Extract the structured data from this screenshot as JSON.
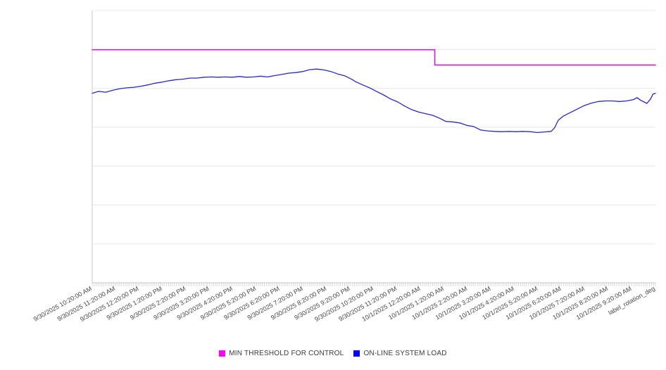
{
  "page": {
    "background_color": "#ffffff",
    "gridline_color": "#e8e8e8",
    "axis_color": "#c8c8c8",
    "tick_color": "#c4c4c4",
    "axis_label_color": "#474747"
  },
  "chart_data": {
    "type": "line",
    "title": "",
    "xlabel": "",
    "ylabel": "",
    "legend_position": "bottom",
    "grid": "horizontal",
    "x_axis": {
      "tick_labels": [
        "9/30/2025 10:20:00 AM",
        "9/30/2025 11:20:00 AM",
        "9/30/2025 12:20:00 PM",
        "9/30/2025 1:20:00 PM",
        "9/30/2025 2:20:00 PM",
        "9/30/2025 3:20:00 PM",
        "9/30/2025 4:20:00 PM",
        "9/30/2025 5:20:00 PM",
        "9/30/2025 6:20:00 PM",
        "9/30/2025 7:20:00 PM",
        "9/30/2025 8:20:00 PM",
        "9/30/2025 9:20:00 PM",
        "9/30/2025 10:20:00 PM",
        "9/30/2025 11:20:00 PM",
        "10/1/2025 12:20:00 AM",
        "10/1/2025 1:20:00 AM",
        "10/1/2025 2:20:00 AM",
        "10/1/2025 3:20:00 AM",
        "10/1/2025 4:20:00 AM",
        "10/1/2025 5:20:00 AM",
        "10/1/2025 6:20:00 AM",
        "10/1/2025 7:20:00 AM",
        "10/1/2025 8:20:00 AM",
        "10/1/2025 9:20:00 AM",
        "label_rotation_deg",
        -29
      ],
      "range_hours": [
        0,
        23
      ],
      "minor_ticks_per_hour": 12
    },
    "y_axis": {
      "tick_labels_visible": false,
      "divisions": 7,
      "value_range_pct": [
        0,
        100
      ]
    },
    "series": [
      {
        "name": "MIN THRESHOLD FOR CONTROL",
        "line_color": "#ce1fce",
        "legend_color": "#ff00ff",
        "line_width": 1.6,
        "points": [
          [
            0,
            85.6
          ],
          [
            13.99,
            85.6
          ],
          [
            13.99,
            80.0
          ],
          [
            23,
            80.0
          ]
        ]
      },
      {
        "name": "ON-LINE SYSTEM LOAD",
        "line_color": "#2828c8",
        "legend_color": "#0000ff",
        "line_width": 1.3,
        "points": [
          [
            0,
            69.6
          ],
          [
            0.26,
            70.3
          ],
          [
            0.55,
            70.0
          ],
          [
            0.83,
            70.7
          ],
          [
            1.12,
            71.3
          ],
          [
            1.41,
            71.6
          ],
          [
            1.7,
            71.8
          ],
          [
            1.98,
            72.2
          ],
          [
            2.27,
            72.7
          ],
          [
            2.56,
            73.3
          ],
          [
            2.85,
            73.7
          ],
          [
            3.13,
            74.2
          ],
          [
            3.42,
            74.6
          ],
          [
            3.71,
            74.8
          ],
          [
            4.0,
            75.2
          ],
          [
            4.28,
            75.2
          ],
          [
            4.57,
            75.5
          ],
          [
            4.86,
            75.6
          ],
          [
            5.15,
            75.5
          ],
          [
            5.43,
            75.6
          ],
          [
            5.72,
            75.5
          ],
          [
            6.01,
            75.8
          ],
          [
            6.3,
            75.5
          ],
          [
            6.58,
            75.6
          ],
          [
            6.87,
            75.9
          ],
          [
            7.16,
            75.6
          ],
          [
            7.45,
            76.1
          ],
          [
            7.73,
            76.5
          ],
          [
            8.02,
            77.0
          ],
          [
            8.31,
            77.2
          ],
          [
            8.6,
            77.6
          ],
          [
            8.88,
            78.3
          ],
          [
            9.17,
            78.5
          ],
          [
            9.46,
            78.2
          ],
          [
            9.75,
            77.6
          ],
          [
            10.03,
            76.7
          ],
          [
            10.32,
            76.0
          ],
          [
            10.61,
            74.7
          ],
          [
            10.75,
            73.9
          ],
          [
            11.04,
            72.7
          ],
          [
            11.33,
            71.6
          ],
          [
            11.61,
            70.3
          ],
          [
            11.9,
            69.0
          ],
          [
            12.19,
            67.5
          ],
          [
            12.48,
            66.4
          ],
          [
            12.76,
            64.9
          ],
          [
            13.05,
            63.6
          ],
          [
            13.34,
            62.7
          ],
          [
            13.63,
            62.1
          ],
          [
            13.91,
            61.5
          ],
          [
            14.2,
            60.4
          ],
          [
            14.43,
            59.3
          ],
          [
            14.72,
            59.1
          ],
          [
            15.01,
            58.7
          ],
          [
            15.3,
            57.8
          ],
          [
            15.58,
            57.4
          ],
          [
            15.87,
            56.1
          ],
          [
            16.16,
            55.8
          ],
          [
            16.44,
            55.6
          ],
          [
            16.73,
            55.5
          ],
          [
            17.02,
            55.6
          ],
          [
            17.31,
            55.5
          ],
          [
            17.59,
            55.6
          ],
          [
            17.88,
            55.5
          ],
          [
            18.17,
            55.2
          ],
          [
            18.46,
            55.4
          ],
          [
            18.74,
            55.6
          ],
          [
            18.89,
            57.0
          ],
          [
            19.03,
            59.7
          ],
          [
            19.23,
            61.2
          ],
          [
            19.52,
            62.5
          ],
          [
            19.81,
            63.8
          ],
          [
            20.09,
            65.1
          ],
          [
            20.38,
            66.0
          ],
          [
            20.67,
            66.6
          ],
          [
            20.96,
            66.8
          ],
          [
            21.24,
            66.8
          ],
          [
            21.53,
            66.6
          ],
          [
            21.82,
            66.8
          ],
          [
            22.11,
            67.3
          ],
          [
            22.25,
            68.0
          ],
          [
            22.4,
            67.0
          ],
          [
            22.54,
            66.4
          ],
          [
            22.65,
            65.9
          ],
          [
            22.8,
            67.5
          ],
          [
            22.9,
            69.3
          ],
          [
            23,
            69.6
          ]
        ]
      }
    ]
  },
  "legend": {
    "items": [
      {
        "label": "MIN THRESHOLD FOR CONTROL",
        "color": "#ff00ff"
      },
      {
        "label": "ON-LINE SYSTEM LOAD",
        "color": "#0000ff"
      }
    ]
  }
}
